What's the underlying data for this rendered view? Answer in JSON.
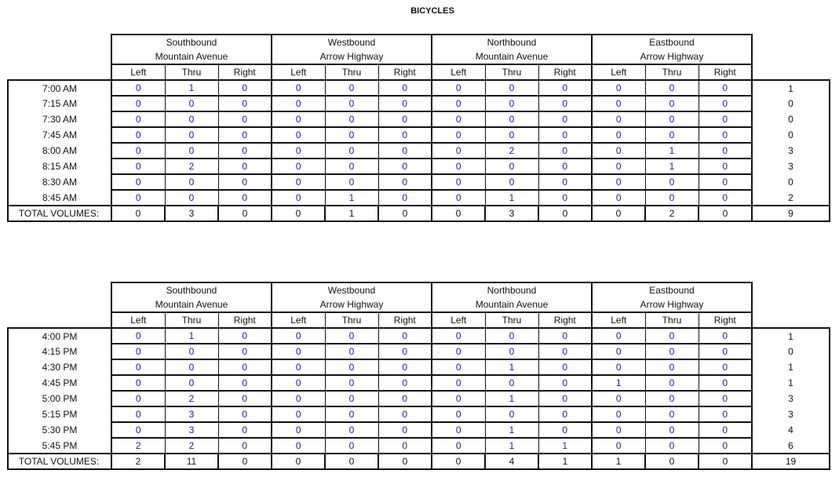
{
  "title": "BICYCLES",
  "approach_groups": [
    {
      "direction": "Southbound",
      "street": "Mountain Avenue"
    },
    {
      "direction": "Westbound",
      "street": "Arrow Highway"
    },
    {
      "direction": "Northbound",
      "street": "Mountain Avenue"
    },
    {
      "direction": "Eastbound",
      "street": "Arrow Highway"
    }
  ],
  "movements": [
    "Left",
    "Thru",
    "Right"
  ],
  "total_label": "TOTAL VOLUMES:",
  "tables": [
    {
      "period": "AM",
      "rows": [
        {
          "time": "7:00 AM",
          "values": [
            0,
            1,
            0,
            0,
            0,
            0,
            0,
            0,
            0,
            0,
            0,
            0
          ],
          "total": 1
        },
        {
          "time": "7:15 AM",
          "values": [
            0,
            0,
            0,
            0,
            0,
            0,
            0,
            0,
            0,
            0,
            0,
            0
          ],
          "total": 0
        },
        {
          "time": "7:30 AM",
          "values": [
            0,
            0,
            0,
            0,
            0,
            0,
            0,
            0,
            0,
            0,
            0,
            0
          ],
          "total": 0
        },
        {
          "time": "7:45 AM",
          "values": [
            0,
            0,
            0,
            0,
            0,
            0,
            0,
            0,
            0,
            0,
            0,
            0
          ],
          "total": 0
        },
        {
          "time": "8:00 AM",
          "values": [
            0,
            0,
            0,
            0,
            0,
            0,
            0,
            2,
            0,
            0,
            1,
            0
          ],
          "total": 3
        },
        {
          "time": "8:15 AM",
          "values": [
            0,
            2,
            0,
            0,
            0,
            0,
            0,
            0,
            0,
            0,
            1,
            0
          ],
          "total": 3
        },
        {
          "time": "8:30 AM",
          "values": [
            0,
            0,
            0,
            0,
            0,
            0,
            0,
            0,
            0,
            0,
            0,
            0
          ],
          "total": 0
        },
        {
          "time": "8:45 AM",
          "values": [
            0,
            0,
            0,
            0,
            1,
            0,
            0,
            1,
            0,
            0,
            0,
            0
          ],
          "total": 2
        }
      ],
      "totals": {
        "values": [
          0,
          3,
          0,
          0,
          1,
          0,
          0,
          3,
          0,
          0,
          2,
          0
        ],
        "total": 9
      }
    },
    {
      "period": "PM",
      "rows": [
        {
          "time": "4:00 PM",
          "values": [
            0,
            1,
            0,
            0,
            0,
            0,
            0,
            0,
            0,
            0,
            0,
            0
          ],
          "total": 1
        },
        {
          "time": "4:15 PM",
          "values": [
            0,
            0,
            0,
            0,
            0,
            0,
            0,
            0,
            0,
            0,
            0,
            0
          ],
          "total": 0
        },
        {
          "time": "4:30 PM",
          "values": [
            0,
            0,
            0,
            0,
            0,
            0,
            0,
            1,
            0,
            0,
            0,
            0
          ],
          "total": 1
        },
        {
          "time": "4:45 PM",
          "values": [
            0,
            0,
            0,
            0,
            0,
            0,
            0,
            0,
            0,
            1,
            0,
            0
          ],
          "total": 1
        },
        {
          "time": "5:00 PM",
          "values": [
            0,
            2,
            0,
            0,
            0,
            0,
            0,
            1,
            0,
            0,
            0,
            0
          ],
          "total": 3
        },
        {
          "time": "5:15 PM",
          "values": [
            0,
            3,
            0,
            0,
            0,
            0,
            0,
            0,
            0,
            0,
            0,
            0
          ],
          "total": 3
        },
        {
          "time": "5:30 PM",
          "values": [
            0,
            3,
            0,
            0,
            0,
            0,
            0,
            1,
            0,
            0,
            0,
            0
          ],
          "total": 4
        },
        {
          "time": "5:45 PM",
          "values": [
            2,
            2,
            0,
            0,
            0,
            0,
            0,
            1,
            1,
            0,
            0,
            0
          ],
          "total": 6
        }
      ],
      "totals": {
        "values": [
          2,
          11,
          0,
          0,
          0,
          0,
          0,
          4,
          1,
          1,
          0,
          0
        ],
        "total": 19
      }
    }
  ]
}
